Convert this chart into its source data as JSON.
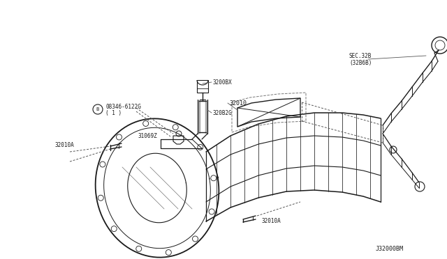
{
  "bg_color": "#ffffff",
  "line_color": "#1a1a1a",
  "text_color": "#1a1a1a",
  "diagram_code": "J32000BM",
  "labels": {
    "sec": "SEC.32B",
    "sec2": "(32B6B)",
    "part1": "08346-6122G",
    "part1b": "( 1 )",
    "part2": "31069Z",
    "part3": "3200BX",
    "part4": "320B2G",
    "part5": "32010",
    "part6a": "32010A",
    "part6b": "32010A"
  },
  "figsize": [
    6.4,
    3.72
  ],
  "dpi": 100
}
